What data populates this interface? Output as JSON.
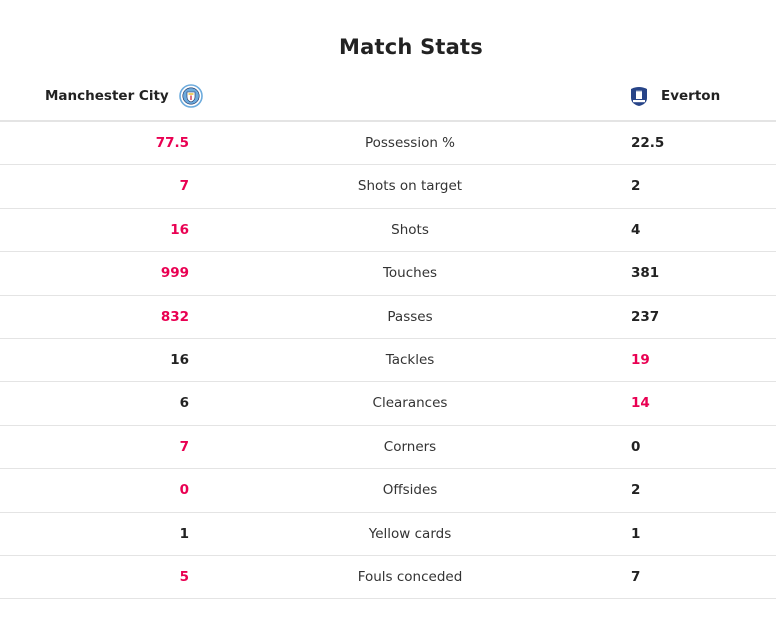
{
  "title": "Match Stats",
  "home_team": {
    "name": "Manchester City",
    "badge_icon": "manchester-city-badge-icon"
  },
  "away_team": {
    "name": "Everton",
    "badge_icon": "everton-badge-icon"
  },
  "colors": {
    "leader": "#e90052",
    "default": "#222222",
    "divider": "#e4e4e4"
  },
  "stats": [
    {
      "label": "Possession %",
      "home": "77.5",
      "away": "22.5",
      "home_lead": true,
      "away_lead": false
    },
    {
      "label": "Shots on target",
      "home": "7",
      "away": "2",
      "home_lead": true,
      "away_lead": false
    },
    {
      "label": "Shots",
      "home": "16",
      "away": "4",
      "home_lead": true,
      "away_lead": false
    },
    {
      "label": "Touches",
      "home": "999",
      "away": "381",
      "home_lead": true,
      "away_lead": false
    },
    {
      "label": "Passes",
      "home": "832",
      "away": "237",
      "home_lead": true,
      "away_lead": false
    },
    {
      "label": "Tackles",
      "home": "16",
      "away": "19",
      "home_lead": false,
      "away_lead": true
    },
    {
      "label": "Clearances",
      "home": "6",
      "away": "14",
      "home_lead": false,
      "away_lead": true
    },
    {
      "label": "Corners",
      "home": "7",
      "away": "0",
      "home_lead": true,
      "away_lead": false
    },
    {
      "label": "Offsides",
      "home": "0",
      "away": "2",
      "home_lead": true,
      "away_lead": false
    },
    {
      "label": "Yellow cards",
      "home": "1",
      "away": "1",
      "home_lead": false,
      "away_lead": false
    },
    {
      "label": "Fouls conceded",
      "home": "5",
      "away": "7",
      "home_lead": true,
      "away_lead": false
    }
  ]
}
